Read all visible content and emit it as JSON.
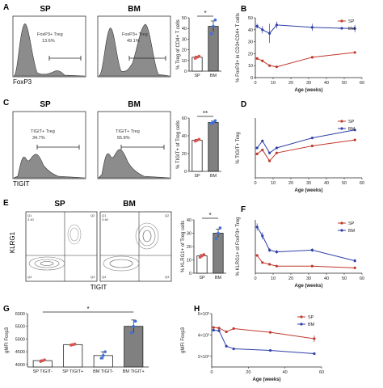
{
  "colors": {
    "sp": "#c0392b",
    "bm": "#2e3fa8",
    "bar_dark": "#808080",
    "hist_fill": "#8c8c8c",
    "dot_red": "#d9534f",
    "dot_blue": "#3f6fd9"
  },
  "panels": {
    "A": {
      "letter": "A",
      "titles": [
        "SP",
        "BM"
      ],
      "gates": [
        {
          "name": "FoxP3+ Treg",
          "pct": "13.6%"
        },
        {
          "name": "FoxP3+ Treg",
          "pct": "49.1%"
        }
      ],
      "xlabel": "FoxP3"
    },
    "C": {
      "letter": "C",
      "titles": [
        "SP",
        "BM"
      ],
      "gates": [
        {
          "name": "TIGIT+ Treg",
          "pct": "34.7%"
        },
        {
          "name": "TIGIT+ Treg",
          "pct": "55.8%"
        }
      ],
      "xlabel": "TIGIT"
    },
    "E": {
      "letter": "E",
      "titles": [
        "SP",
        "BM"
      ],
      "ylabel": "KLRG1",
      "xlabel": "TIGIT",
      "quadrants": [
        [
          "Q1",
          "Q2",
          "Q3",
          "Q4"
        ],
        [
          "Q1",
          "Q2",
          "Q3",
          "Q4"
        ]
      ],
      "quad_values": [
        [
          "3.40",
          "",
          "",
          ""
        ],
        [
          "3.46",
          "",
          "",
          ""
        ]
      ]
    }
  },
  "chart_data": [
    {
      "id": "A-bar",
      "type": "bar",
      "categories": [
        "SP",
        "BM"
      ],
      "values": [
        13,
        42
      ],
      "errors": [
        1,
        5
      ],
      "points": [
        [
          12,
          13,
          14
        ],
        [
          35,
          42,
          48
        ]
      ],
      "ylabel": "% Treg of CD4+ T cells",
      "yticks": [
        0,
        10,
        20,
        30,
        40,
        50
      ],
      "ylim": [
        0,
        50
      ],
      "significance": "*"
    },
    {
      "id": "B",
      "letter": "B",
      "type": "line",
      "x": [
        1,
        4,
        8,
        12,
        32,
        56
      ],
      "series": [
        {
          "name": "SP",
          "values": [
            16,
            14,
            10,
            9,
            17,
            21
          ],
          "errors": [
            1,
            1,
            1,
            1,
            1,
            1
          ]
        },
        {
          "name": "BM",
          "values": [
            43,
            40,
            37,
            44,
            42,
            41
          ],
          "errors": [
            2,
            3,
            8,
            3,
            3,
            3
          ]
        }
      ],
      "ylabel": "% FoxP3+ in CD3+CD4+ T cells",
      "xlabel": "Age (weeks)",
      "xticks": [
        0,
        10,
        20,
        30,
        40,
        50,
        60
      ],
      "xlim": [
        0,
        60
      ],
      "yticks": [
        0,
        10,
        20,
        30,
        40,
        50
      ],
      "ylim": [
        0,
        50
      ]
    },
    {
      "id": "C-bar",
      "type": "bar",
      "categories": [
        "SP",
        "BM"
      ],
      "values": [
        35,
        55
      ],
      "errors": [
        1,
        1.5
      ],
      "points": [
        [
          34,
          35,
          36
        ],
        [
          54,
          55,
          57
        ]
      ],
      "ylabel": "% TIGIT+ of Treg cells",
      "yticks": [
        0,
        20,
        40,
        60
      ],
      "ylim": [
        0,
        60
      ],
      "significance": "**"
    },
    {
      "id": "D",
      "letter": "D",
      "type": "line",
      "x": [
        1,
        4,
        8,
        12,
        32,
        56
      ],
      "series": [
        {
          "name": "SP",
          "values": [
            24,
            28,
            17,
            25,
            32,
            38
          ],
          "errors": [
            1,
            1,
            1,
            1,
            1,
            1
          ]
        },
        {
          "name": "BM",
          "values": [
            30,
            37,
            25,
            30,
            40,
            48
          ],
          "errors": [
            1,
            1,
            1,
            1,
            1,
            1
          ]
        }
      ],
      "ylabel": "% TIGIT+ Treg",
      "xlabel": "Age (weeks)",
      "xticks": [
        0,
        10,
        20,
        30,
        40,
        50,
        60
      ],
      "xlim": [
        0,
        60
      ],
      "yticks": [],
      "ylim": [
        0,
        60
      ]
    },
    {
      "id": "E-bar",
      "type": "bar",
      "categories": [
        "SP",
        "BM"
      ],
      "values": [
        13,
        30
      ],
      "errors": [
        1,
        3
      ],
      "points": [
        [
          12,
          13,
          14
        ],
        [
          26,
          30,
          34
        ]
      ],
      "ylabel": "% KLRG1+ of Treg cells",
      "yticks": [
        0,
        10,
        20,
        30,
        40
      ],
      "ylim": [
        0,
        40
      ],
      "significance": "*"
    },
    {
      "id": "F",
      "letter": "F",
      "type": "line",
      "x": [
        1,
        4,
        8,
        12,
        32,
        56
      ],
      "series": [
        {
          "name": "SP",
          "values": [
            10,
            6,
            5,
            4,
            4,
            3
          ],
          "errors": [
            0.5,
            0.5,
            0.5,
            0.5,
            0.5,
            0.5
          ]
        },
        {
          "name": "BM",
          "values": [
            26,
            21,
            13,
            12,
            13,
            7
          ],
          "errors": [
            2,
            2,
            1,
            1,
            1,
            1
          ]
        }
      ],
      "ylabel": "% KLRG1+ of FoxP3+ Treg",
      "xlabel": "Age (weeks)",
      "xticks": [
        0,
        10,
        20,
        30,
        40,
        50,
        60
      ],
      "xlim": [
        0,
        60
      ],
      "yticks": [],
      "ylim": [
        0,
        30
      ]
    },
    {
      "id": "G",
      "letter": "G",
      "type": "bar",
      "categories": [
        "SP TIGIT-",
        "SP TIGIT+",
        "BM TIGIT-",
        "BM TIGIT+"
      ],
      "values": [
        4150,
        4780,
        4350,
        5500
      ],
      "errors": [
        30,
        30,
        150,
        250
      ],
      "points": [
        [
          4120,
          4150,
          4180
        ],
        [
          4760,
          4780,
          4800
        ],
        [
          4250,
          4350,
          4500
        ],
        [
          5250,
          5500,
          5700
        ]
      ],
      "fills": [
        "#ffffff",
        "#ffffff",
        "#ffffff",
        "#808080"
      ],
      "dot_colors": [
        "#d9534f",
        "#d9534f",
        "#3f6fd9",
        "#3f6fd9"
      ],
      "ylabel": "gMFI Foxp3",
      "yticks": [
        4000,
        4500,
        5000,
        5500,
        6000
      ],
      "ylim": [
        3900,
        6000
      ],
      "significance": "*"
    },
    {
      "id": "H",
      "letter": "H",
      "type": "line",
      "x": [
        1,
        4,
        8,
        12,
        32,
        56
      ],
      "series": [
        {
          "name": "SP",
          "values": [
            4700,
            4650,
            4300,
            4600,
            4250,
            3650
          ],
          "errors": [
            100,
            100,
            100,
            100,
            100,
            300
          ]
        },
        {
          "name": "BM",
          "values": [
            4450,
            4400,
            2950,
            2700,
            2550,
            2250
          ],
          "errors": [
            100,
            100,
            100,
            100,
            100,
            100
          ]
        }
      ],
      "ylabel": "gMFI Foxp3",
      "xlabel": "Age (weeks)",
      "xticks": [
        0,
        20,
        40,
        60
      ],
      "xlim": [
        0,
        60
      ],
      "yticks": [
        2000,
        4000,
        6000
      ],
      "ytick_labels": [
        "2×10³",
        "4×10³",
        "6×10³"
      ],
      "ylim": [
        1000,
        6000
      ]
    }
  ]
}
